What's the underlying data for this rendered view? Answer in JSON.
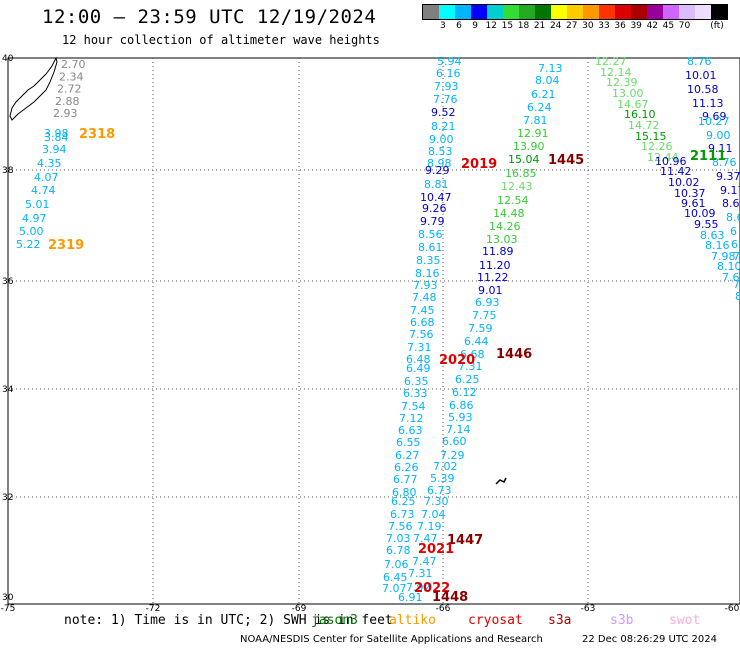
{
  "title": "12:00 – 23:59 UTC 12/19/2024",
  "subtitle": "12 hour collection of altimeter wave heights",
  "scale": {
    "unit": "(ft)",
    "colors": [
      "#7f7f7f",
      "#00ffff",
      "#00b4ff",
      "#0000ff",
      "#00cfcf",
      "#33dd33",
      "#22aa22",
      "#007700",
      "#ffff00",
      "#ffcc00",
      "#ff9900",
      "#ff3300",
      "#dd0000",
      "#aa0000",
      "#990099",
      "#cc66ff",
      "#ddbbff",
      "#eeddff",
      "#000000"
    ],
    "labels": [
      "3",
      "6",
      "9",
      "12",
      "15",
      "18",
      "21",
      "24",
      "27",
      "30",
      "33",
      "36",
      "39",
      "42",
      "45",
      "70"
    ]
  },
  "map": {
    "x_ticks": [
      "-75",
      "-72",
      "-69",
      "-66",
      "-63",
      "-60"
    ],
    "y_ticks": [
      "40",
      "38",
      "36",
      "34",
      "32",
      "30"
    ]
  },
  "tracks": {
    "grey": [
      "2.70",
      "2.34",
      "2.72",
      "2.88",
      "2.93"
    ],
    "left": [
      "3.98",
      "3.84",
      "3.94",
      "4.35",
      "4.07",
      "4.74",
      "5.01",
      "4.97",
      "5.00",
      "5.22"
    ],
    "left_passes": [
      "2318",
      "2319"
    ],
    "center_top": [
      "5.94",
      "6.16",
      "7.93",
      "7.76",
      "9.52",
      "8.21",
      "9.00",
      "8.53",
      "8.98",
      "9.29",
      "8.81",
      "10.47",
      "9.26",
      "9.79",
      "8.56",
      "8.61",
      "8.35",
      "8.16",
      "7.93",
      "7.48",
      "7.45",
      "6.68",
      "7.56",
      "7.31",
      "6.48",
      "6.49",
      "6.35",
      "6.33",
      "7.54",
      "7.12",
      "6.63",
      "6.55",
      "6.27",
      "6.26",
      "6.77",
      "6.80",
      "6.25",
      "6.73",
      "7.56",
      "7.03",
      "6.78",
      "7.06",
      "6.45",
      "7.07",
      "6.91"
    ],
    "center_bottom": [
      "7.31",
      "6.25",
      "6.12",
      "6.86",
      "5.93",
      "7.14",
      "6.60",
      "7.29",
      "7.02",
      "5.39",
      "6.73",
      "7.30",
      "7.04",
      "7.19",
      "7.47",
      "7.47",
      "7.31",
      "7.92"
    ],
    "green": [
      "7.13",
      "8.04",
      "6.21",
      "6.24",
      "7.81",
      "12.91",
      "13.90",
      "15.04",
      "16.85",
      "12.43",
      "12.54",
      "14.48",
      "14.26",
      "13.03",
      "11.89",
      "11.20",
      "11.22",
      "9.01",
      "6.93",
      "7.75",
      "7.59",
      "6.44",
      "6.68"
    ],
    "right_green": [
      "12.27",
      "12.14",
      "12.39",
      "13.00",
      "14.67",
      "16.10",
      "14.72",
      "15.15",
      "12.26",
      "12.44"
    ],
    "right_blue": [
      "8.76",
      "10.01",
      "10.58",
      "11.13",
      "9.69",
      "10.27",
      "9.00",
      "9.11",
      "8.76",
      "9.37",
      "9.17",
      "8.6",
      "8.6",
      "6",
      "6",
      "7",
      "7",
      "8"
    ],
    "right_mid": [
      "10.96",
      "11.42",
      "10.02",
      "10.37",
      "9.61",
      "10.09",
      "9.55",
      "8.63",
      "8.16",
      "7.98",
      "8.10",
      "7.6"
    ],
    "passes": [
      "2019",
      "1445",
      "2020",
      "1446",
      "2021",
      "1447",
      "2022",
      "1448",
      "2111"
    ]
  },
  "note": "note: 1) Time is in UTC; 2) SWH is in feet",
  "legend": [
    "jason3",
    "altiko",
    "cryosat",
    "s3a",
    "s3b",
    "swot"
  ],
  "legend_colors": [
    "#007700",
    "#ff9900",
    "#dd0000",
    "#aa0000",
    "#cc99ff",
    "#ffaadd"
  ],
  "footer_left": "NOAA/NESDIS Center for Satellite Applications and Research",
  "footer_right": "22 Dec 08:26:29 UTC 2024"
}
